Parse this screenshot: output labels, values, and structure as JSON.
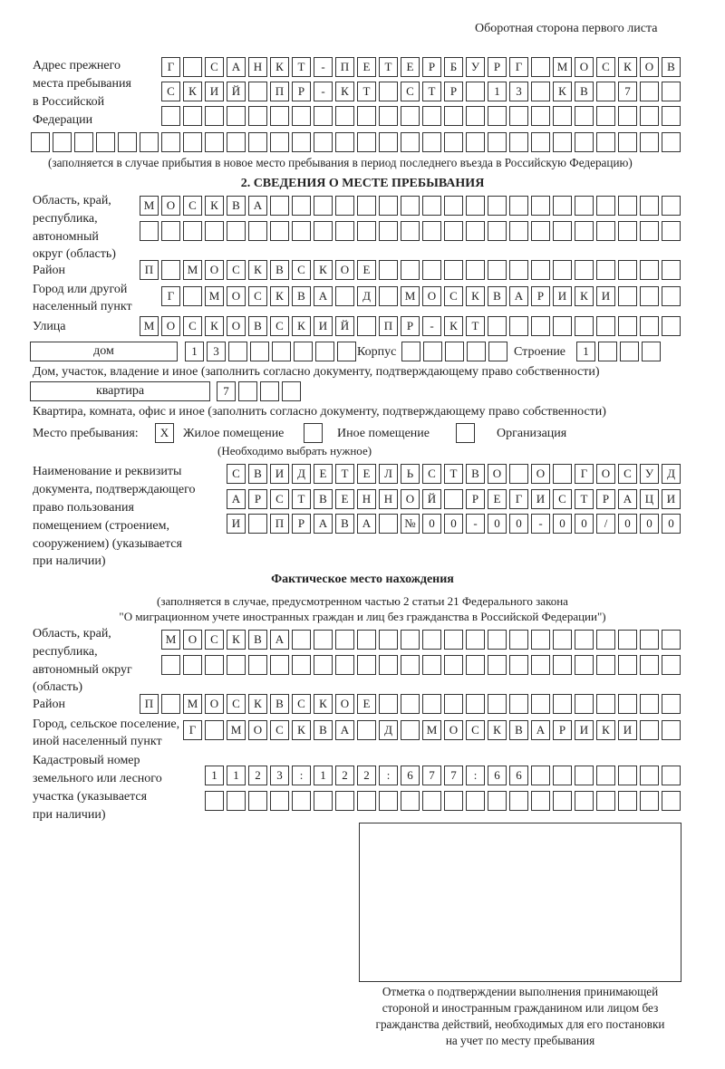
{
  "header": {
    "page_side": "Оборотная сторона первого листа"
  },
  "previous_address": {
    "label": [
      "Адрес прежнего",
      "места пребывания",
      "в Российской",
      "Федерации"
    ],
    "rows": [
      "Г САНКТ-ПЕТЕРБУРГ МОСКОВ",
      "СКИЙ ПР-КТ СТР 13 КВ 7",
      "",
      ""
    ],
    "note": "(заполняется в случае прибытия в новое место пребывания в период последнего въезда в Российскую Федерацию)"
  },
  "section2": {
    "title": "2. СВЕДЕНИЯ О МЕСТЕ ПРЕБЫВАНИЯ",
    "region_label": [
      "Область, край,",
      "республика,",
      "автономный",
      "округ (область)"
    ],
    "region_rows": [
      "МОСКВА",
      ""
    ],
    "district_label": "Район",
    "district": "П МОСКВСКОЕ",
    "city_label": [
      "Город или другой",
      "населенный пункт"
    ],
    "city": "Г МОСКВА Д МОСКВАРИКИ",
    "street_label": "Улица",
    "street": "МОСКОВСКИЙ ПР-КТ",
    "house_type": "дом",
    "house_number": "13",
    "korpus_label": "Корпус",
    "korpus": "",
    "building_label": "Строение",
    "building": "1",
    "house_note": "Дом, участок, владение и иное (заполнить согласно документу, подтверждающему право собственности)",
    "apt_type": "квартира",
    "apt_number": "7",
    "apt_note": "Квартира, комната, офис и иное (заполнить согласно документу, подтверждающему право собственности)",
    "stay_label": "Место пребывания:",
    "stay_options": [
      {
        "label": "Жилое помещение",
        "mark": "X",
        "checked": true
      },
      {
        "label": "Иное помещение",
        "mark": "",
        "checked": false
      },
      {
        "label": "Организация",
        "mark": "",
        "checked": false
      }
    ],
    "stay_note": "(Необходимо выбрать нужное)",
    "doc_label": [
      "Наименование и реквизиты",
      "документа, подтверждающего",
      "право пользования",
      "помещением (строением,",
      "сооружением) (указывается",
      "при наличии)"
    ],
    "doc_rows": [
      "СВИДЕТЕЛЬСТВО О ГОСУД",
      "АРСТВЕННОЙ РЕГИСТРАЦИ",
      "И ПРАВА №00-00-00/000"
    ]
  },
  "actual": {
    "title": "Фактическое место нахождения",
    "note": [
      "(заполняется в случае, предусмотренном частью 2 статьи 21 Федерального закона",
      "\"О миграционном учете иностранных граждан и лиц без гражданства в Российской Федерации\")"
    ],
    "region_label": [
      "Область, край,",
      "республика,",
      "автономный округ",
      "(область)"
    ],
    "region_rows": [
      "МОСКВА",
      ""
    ],
    "district_label": "Район",
    "district": "П МОСКВСКОЕ",
    "city_label": [
      "Город, сельское поселение,",
      "иной населенный пункт"
    ],
    "city": "Г МОСКВА Д МОСКВАРИКИ",
    "cadastral_label": [
      "Кадастровый номер",
      "земельного или лесного",
      "участка (указывается",
      "при наличии)"
    ],
    "cadastral_rows": [
      "1123:122:677:66",
      ""
    ]
  },
  "confirmation": {
    "caption": [
      "Отметка о подтверждении выполнения принимающей",
      "стороной и иностранным гражданином или лицом без",
      "гражданства действий, необходимых для его постановки",
      "на учет по месту пребывания"
    ]
  }
}
